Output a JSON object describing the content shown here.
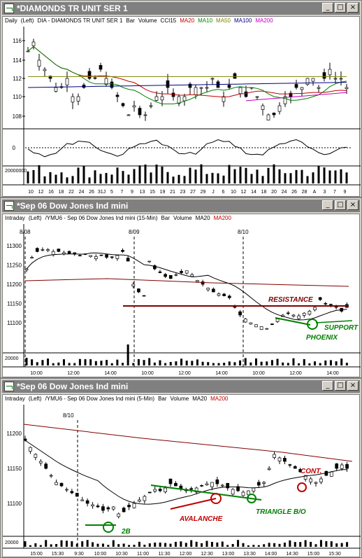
{
  "windows": [
    {
      "title": "*DIAMONDS TR UNIT SER 1",
      "info": [
        "Daily",
        "(Left)",
        "DIA - DIAMONDS TR UNIT SER 1",
        "Bar",
        "Volume",
        "CCI15"
      ],
      "mas": [
        {
          "label": "MA20",
          "color": "#c00000"
        },
        {
          "label": "MA10",
          "color": "#008000"
        },
        {
          "label": "MA50",
          "color": "#808000"
        },
        {
          "label": "MA100",
          "color": "#000080"
        },
        {
          "label": "MA200",
          "color": "#c000c0"
        }
      ],
      "price_ticks": [
        "116",
        "114",
        "112",
        "110",
        "108"
      ],
      "cci_tick": "0",
      "vol_tick": "20000000",
      "date_ticks": [
        "10",
        "12",
        "16",
        "18",
        "22",
        "24",
        "26",
        "31J",
        "5",
        "7",
        "9",
        "13",
        "15",
        "19",
        "21",
        "23",
        "27",
        "29",
        "J",
        "6",
        "10",
        "12",
        "14",
        "18",
        "20",
        "24",
        "26",
        "28",
        "A",
        "3",
        "7",
        "9"
      ]
    },
    {
      "title": "*Sep 06  Dow Jones Ind mini",
      "info": [
        "Intraday",
        "(Left)",
        "/YMU6 - Sep 06  Dow Jones Ind mini (15-Min)",
        "Bar",
        "Volume",
        "MA20"
      ],
      "mas": [
        {
          "label": "MA200",
          "color": "#c00000"
        }
      ],
      "session_labels": [
        "8/08",
        "8/09",
        "8/10"
      ],
      "price_ticks": [
        "11300",
        "11250",
        "11200",
        "11150",
        "11100"
      ],
      "vol_tick": "20000",
      "time_ticks": [
        "10:00",
        "12:00",
        "14:00",
        "10:00",
        "12:00",
        "14:00",
        "10:00",
        "12:00",
        "14:00"
      ],
      "annotations": {
        "resistance": "RESISTANCE",
        "support": "SUPPORT",
        "phoenix": "PHOENIX"
      }
    },
    {
      "title": "*Sep 06  Dow Jones Ind mini",
      "info": [
        "Intraday",
        "(Left)",
        "/YMU6 - Sep 06  Dow Jones Ind mini (5-Min)",
        "Bar",
        "Volume",
        "MA20"
      ],
      "mas": [
        {
          "label": "MA200",
          "color": "#c00000"
        }
      ],
      "session_labels": [
        "8/10"
      ],
      "price_ticks": [
        "11200",
        "11150",
        "11100"
      ],
      "vol_tick": "20000",
      "time_ticks": [
        "15:00",
        "15:30",
        "9:30",
        "10:00",
        "10:30",
        "11:00",
        "11:30",
        "12:00",
        "12:30",
        "13:00",
        "13:30",
        "14:00",
        "14:30",
        "15:00",
        "15:30"
      ],
      "annotations": {
        "cont": "CONT.",
        "avalanche": "AVALANCHE",
        "triangle": "TRIANGLE B/O",
        "twob": "2B"
      }
    }
  ],
  "buttons": {
    "minimize": "_",
    "maximize": "□",
    "close": "×"
  }
}
